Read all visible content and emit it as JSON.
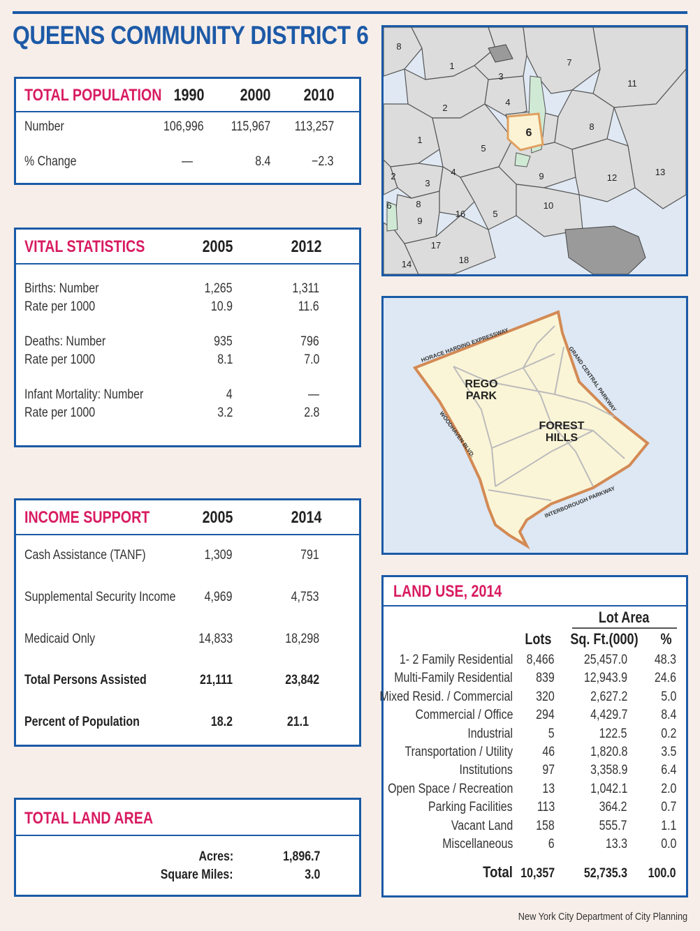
{
  "title": "QUEENS COMMUNITY DISTRICT 6",
  "population": {
    "heading": "TOTAL POPULATION",
    "years": [
      "1990",
      "2000",
      "2010"
    ],
    "rows": [
      {
        "label": "Number",
        "values": [
          "106,996",
          "115,967",
          "113,257"
        ]
      },
      {
        "label": "% Change",
        "values": [
          "—",
          "8.4",
          "−2.3"
        ]
      }
    ]
  },
  "vital": {
    "heading": "VITAL STATISTICS",
    "years": [
      "2005",
      "2012"
    ],
    "rows": [
      {
        "label": "Births: Number",
        "values": [
          "1,265",
          "1,311"
        ]
      },
      {
        "label": "Rate per 1000",
        "values": [
          "10.9",
          "11.6"
        ]
      },
      {
        "label": "Deaths: Number",
        "values": [
          "935",
          "796"
        ]
      },
      {
        "label": "Rate per 1000",
        "values": [
          "8.1",
          "7.0"
        ]
      },
      {
        "label": "Infant Mortality: Number",
        "values": [
          "4",
          "—"
        ]
      },
      {
        "label": "Rate per 1000",
        "values": [
          "3.2",
          "2.8"
        ]
      }
    ]
  },
  "income": {
    "heading": "INCOME SUPPORT",
    "years": [
      "2005",
      "2014"
    ],
    "rows": [
      {
        "label": "Cash Assistance (TANF)",
        "values": [
          "1,309",
          "791"
        ]
      },
      {
        "label": "Supplemental Security Income",
        "values": [
          "4,969",
          "4,753"
        ]
      },
      {
        "label": "Medicaid Only",
        "values": [
          "14,833",
          "18,298"
        ]
      },
      {
        "label": "Total Persons Assisted",
        "values": [
          "21,111",
          "23,842"
        ]
      },
      {
        "label": "Percent of Population",
        "values": [
          "18.2",
          "21.1"
        ]
      }
    ]
  },
  "land_area": {
    "heading": "TOTAL LAND AREA",
    "acres_label": "Acres:",
    "acres_value": "1,896.7",
    "sqmi_label": "Square Miles:",
    "sqmi_value": "3.0"
  },
  "land_use": {
    "heading": "LAND USE, 2014",
    "group_header": "Lot Area",
    "col_lots": "Lots",
    "col_sqft": "Sq. Ft.(000)",
    "col_pct": "%",
    "rows": [
      {
        "label": "1- 2 Family Residential",
        "lots": "8,466",
        "sqft": "25,457.0",
        "pct": "48.3"
      },
      {
        "label": "Multi-Family Residential",
        "lots": "839",
        "sqft": "12,943.9",
        "pct": "24.6"
      },
      {
        "label": "Mixed Resid. / Commercial",
        "lots": "320",
        "sqft": "2,627.2",
        "pct": "5.0"
      },
      {
        "label": "Commercial / Office",
        "lots": "294",
        "sqft": "4,429.7",
        "pct": "8.4"
      },
      {
        "label": "Industrial",
        "lots": "5",
        "sqft": "122.5",
        "pct": "0.2"
      },
      {
        "label": "Transportation / Utility",
        "lots": "46",
        "sqft": "1,820.8",
        "pct": "3.5"
      },
      {
        "label": "Institutions",
        "lots": "97",
        "sqft": "3,358.9",
        "pct": "6.4"
      },
      {
        "label": "Open Space / Recreation",
        "lots": "13",
        "sqft": "1,042.1",
        "pct": "2.0"
      },
      {
        "label": "Parking Facilities",
        "lots": "113",
        "sqft": "364.2",
        "pct": "0.7"
      },
      {
        "label": "Vacant Land",
        "lots": "158",
        "sqft": "555.7",
        "pct": "1.1"
      },
      {
        "label": "Miscellaneous",
        "lots": "6",
        "sqft": "13.3",
        "pct": "0.0"
      }
    ],
    "total": {
      "label": "Total",
      "lots": "10,357",
      "sqft": "52,735.3",
      "pct": "100.0"
    }
  },
  "borough_map": {
    "districts": [
      "8",
      "1",
      "3",
      "7",
      "11",
      "2",
      "4",
      "6",
      "8",
      "1",
      "5",
      "9",
      "12",
      "13",
      "2",
      "3",
      "4",
      "6",
      "8",
      "9",
      "16",
      "5",
      "10",
      "17",
      "18",
      "14"
    ]
  },
  "district_map": {
    "roads": [
      "HORACE HARDING EXPRESSWAY",
      "GRAND CENTRAL PARKWAY",
      "WOODHAVEN BLVD.",
      "INTERBOROUGH PARKWAY"
    ],
    "neighborhoods": [
      [
        "REGO",
        "PARK"
      ],
      [
        "FOREST",
        "HILLS"
      ]
    ]
  },
  "footer": "New York City Department of City Planning"
}
